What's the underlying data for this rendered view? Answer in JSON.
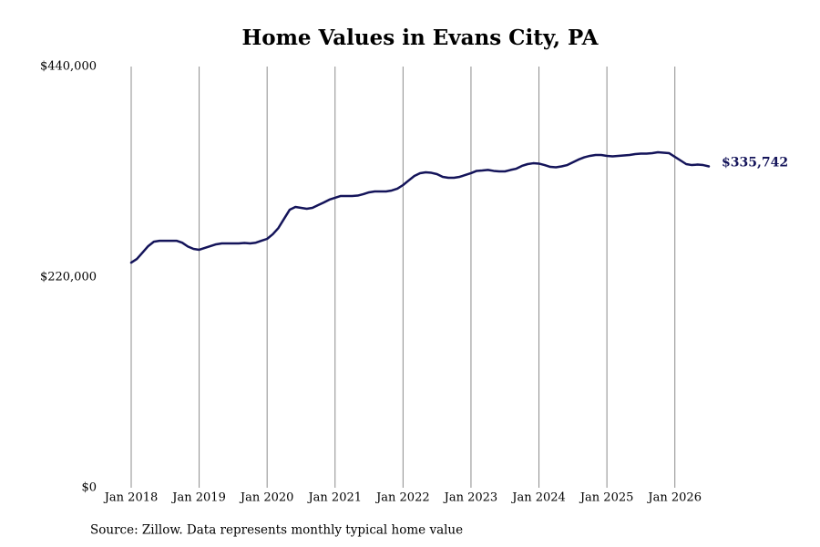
{
  "chart_data": {
    "type": "line",
    "title": "Home Values in Evans City, PA",
    "source": "Source: Zillow. Data represents monthly typical home value",
    "color": "#14145a",
    "grid": true,
    "x": [
      "2018-01",
      "2018-02",
      "2018-03",
      "2018-04",
      "2018-05",
      "2018-06",
      "2018-07",
      "2018-08",
      "2018-09",
      "2018-10",
      "2018-11",
      "2018-12",
      "2019-01",
      "2019-02",
      "2019-03",
      "2019-04",
      "2019-05",
      "2019-06",
      "2019-07",
      "2019-08",
      "2019-09",
      "2019-10",
      "2019-11",
      "2019-12",
      "2020-01",
      "2020-02",
      "2020-03",
      "2020-04",
      "2020-05",
      "2020-06",
      "2020-07",
      "2020-08",
      "2020-09",
      "2020-10",
      "2020-11",
      "2020-12",
      "2021-01",
      "2021-02",
      "2021-03",
      "2021-04",
      "2021-05",
      "2021-06",
      "2021-07",
      "2021-08",
      "2021-09",
      "2021-10",
      "2021-11",
      "2021-12",
      "2022-01",
      "2022-02",
      "2022-03",
      "2022-04",
      "2022-05",
      "2022-06",
      "2022-07",
      "2022-08",
      "2022-09",
      "2022-10",
      "2022-11",
      "2022-12",
      "2023-01",
      "2023-02",
      "2023-03",
      "2023-04",
      "2023-05",
      "2023-06",
      "2023-07",
      "2023-08",
      "2023-09",
      "2023-10",
      "2023-11",
      "2023-12",
      "2024-01",
      "2024-02",
      "2024-03",
      "2024-04",
      "2024-05",
      "2024-06",
      "2024-07",
      "2024-08",
      "2024-09",
      "2024-10",
      "2024-11",
      "2024-12",
      "2025-01",
      "2025-02",
      "2025-03",
      "2025-04",
      "2025-05",
      "2025-06",
      "2025-07",
      "2025-08",
      "2025-09",
      "2025-10",
      "2025-11",
      "2025-12",
      "2026-01",
      "2026-02",
      "2026-03",
      "2026-04",
      "2026-05",
      "2026-06",
      "2026-07"
    ],
    "values": [
      235200,
      239000,
      245700,
      252400,
      257000,
      258000,
      258000,
      258000,
      258000,
      256000,
      252000,
      249500,
      248600,
      250500,
      252400,
      254300,
      255200,
      255200,
      255200,
      255200,
      255700,
      255200,
      256000,
      258000,
      260000,
      264800,
      271400,
      281000,
      290500,
      293300,
      292400,
      291400,
      292400,
      295200,
      298000,
      301000,
      302900,
      304800,
      304800,
      304800,
      305200,
      306700,
      308600,
      309500,
      309500,
      309500,
      310500,
      312400,
      316200,
      321000,
      325700,
      328600,
      329500,
      329000,
      327600,
      324800,
      323800,
      323800,
      324800,
      326700,
      328600,
      331000,
      331400,
      332000,
      331000,
      330500,
      330500,
      332000,
      333300,
      336200,
      338100,
      339000,
      338600,
      337100,
      335200,
      334800,
      335700,
      337100,
      340000,
      342900,
      345200,
      346700,
      347600,
      347600,
      346700,
      346200,
      346700,
      347100,
      347600,
      348600,
      349000,
      349000,
      349500,
      350500,
      350000,
      349500,
      345700,
      341900,
      338100,
      337100,
      337600,
      337100,
      335742
    ],
    "value_labels": [
      null,
      null,
      null,
      null,
      null,
      null,
      null,
      null,
      null,
      null,
      null,
      null,
      null,
      null,
      null,
      null,
      null,
      null,
      null,
      null,
      null,
      null,
      null,
      null,
      null,
      null,
      null,
      null,
      null,
      null,
      null,
      null,
      null,
      null,
      null,
      null,
      null,
      null,
      null,
      null,
      null,
      null,
      null,
      null,
      null,
      null,
      null,
      null,
      null,
      null,
      null,
      null,
      null,
      null,
      null,
      null,
      null,
      null,
      null,
      null,
      null,
      null,
      null,
      null,
      null,
      null,
      null,
      null,
      null,
      null,
      null,
      null,
      null,
      null,
      null,
      null,
      null,
      null,
      null,
      null,
      null,
      null,
      null,
      null,
      null,
      null,
      null,
      null,
      null,
      null,
      null,
      null,
      null,
      null,
      null,
      null,
      null,
      null,
      null,
      null,
      null,
      null,
      "$335,742"
    ],
    "xlim": [
      "2018-01",
      "2026-07"
    ],
    "xticks": [
      {
        "value": "2018-01",
        "label": "Jan 2018"
      },
      {
        "value": "2019-01",
        "label": "Jan 2019"
      },
      {
        "value": "2020-01",
        "label": "Jan 2020"
      },
      {
        "value": "2021-01",
        "label": "Jan 2021"
      },
      {
        "value": "2022-01",
        "label": "Jan 2022"
      },
      {
        "value": "2023-01",
        "label": "Jan 2023"
      },
      {
        "value": "2024-01",
        "label": "Jan 2024"
      },
      {
        "value": "2025-01",
        "label": "Jan 2025"
      },
      {
        "value": "2026-01",
        "label": "Jan 2026"
      }
    ],
    "ylim": [
      0,
      440000
    ],
    "yticks": [
      {
        "value": 0,
        "label": "$0"
      },
      {
        "value": 220000,
        "label": "$220,000"
      },
      {
        "value": 440000,
        "label": "$440,000"
      }
    ]
  }
}
